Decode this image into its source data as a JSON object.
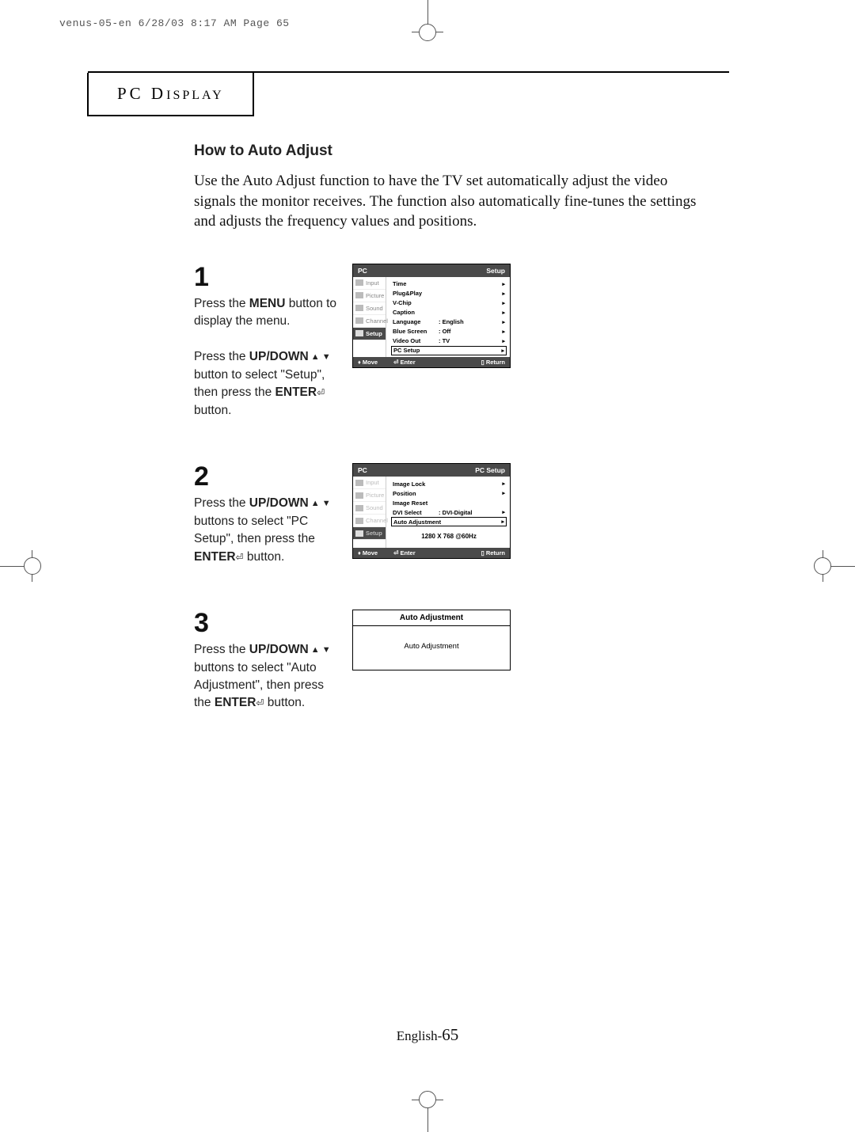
{
  "print_header": "venus-05-en  6/28/03 8:17 AM  Page 65",
  "section_title_main": "PC D",
  "section_title_sc": "ISPLAY",
  "subtitle": "How to Auto Adjust",
  "lead": "Use the Auto Adjust function to have the TV set automatically adjust the video signals the monitor receives.   The function also automatically fine-tunes the settings and adjusts the frequency values and positions.",
  "steps": {
    "s1": {
      "num": "1",
      "text_before_menu": "Press the ",
      "menu_word": "MENU",
      "text_after_menu": " button to display the menu.",
      "p2_a": "Press the ",
      "p2_updown": "UP/DOWN",
      "p2_b": " button to select \"Setup\", then press the ",
      "p2_enter": "ENTER",
      "p2_c": " button."
    },
    "s2": {
      "num": "2",
      "a": "Press the ",
      "updown": "UP/DOWN",
      "b": " buttons to select \"PC Setup\", then press the ",
      "enter": "ENTER",
      "c": " button."
    },
    "s3": {
      "num": "3",
      "a": "Press the ",
      "updown": "UP/DOWN",
      "b": " buttons to select \"Auto Adjustment\", then press the ",
      "enter": "ENTER",
      "c": "  button."
    }
  },
  "osd1": {
    "title_l": "PC",
    "title_r": "Setup",
    "side": [
      "Input",
      "Picture",
      "Sound",
      "Channel",
      "Setup"
    ],
    "active_side": 4,
    "rows": [
      {
        "lbl": "Time",
        "val": "",
        "arrow": "▸"
      },
      {
        "lbl": "Plug&Play",
        "val": "",
        "arrow": "▸"
      },
      {
        "lbl": "V-Chip",
        "val": "",
        "arrow": "▸"
      },
      {
        "lbl": "Caption",
        "val": "",
        "arrow": "▸"
      },
      {
        "lbl": "Language",
        "val": ":   English",
        "arrow": "▸"
      },
      {
        "lbl": "Blue Screen",
        "val": ":   Off",
        "arrow": "▸"
      },
      {
        "lbl": "Video Out",
        "val": ":   TV",
        "arrow": "▸"
      },
      {
        "lbl": "PC Setup",
        "val": "",
        "arrow": "▸",
        "sel": true
      }
    ],
    "footer": {
      "move": "Move",
      "enter": "Enter",
      "return": "Return"
    }
  },
  "osd2": {
    "title_l": "PC",
    "title_r": "PC Setup",
    "side": [
      "Input",
      "Picture",
      "Sound",
      "Channel",
      "Setup"
    ],
    "active_side": 4,
    "rows": [
      {
        "lbl": "Image Lock",
        "val": "",
        "arrow": "▸"
      },
      {
        "lbl": "Position",
        "val": "",
        "arrow": "▸"
      },
      {
        "lbl": "Image Reset",
        "val": "",
        "arrow": ""
      },
      {
        "lbl": "DVI Select",
        "val": ":   DVI-Digital",
        "arrow": "▸"
      },
      {
        "lbl": "Auto Adjustment",
        "val": "",
        "arrow": "▸",
        "sel": true
      }
    ],
    "info": "1280 X 768 @60Hz",
    "footer": {
      "move": "Move",
      "enter": "Enter",
      "return": "Return"
    }
  },
  "osd3": {
    "header": "Auto Adjustment",
    "body": "Auto Adjustment"
  },
  "page_num_prefix": "English-",
  "page_num": "65",
  "colors": {
    "osd_header_bg": "#4a4a4a",
    "text": "#000000",
    "muted": "#888888"
  }
}
